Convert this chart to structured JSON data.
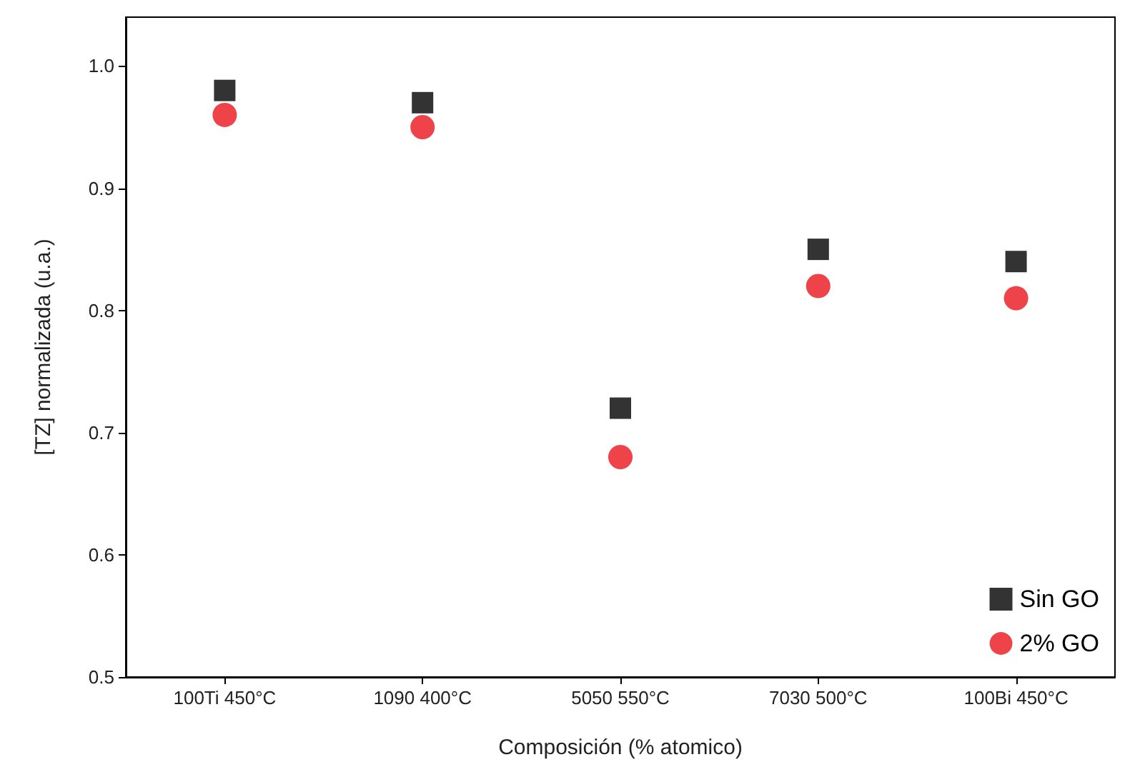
{
  "chart_data": {
    "type": "scatter",
    "xlabel": "Composición (% atomico)",
    "ylabel": "[TZ] normalizada (u.a.)",
    "categories": [
      "100Ti 450°C",
      "1090 400°C",
      "5050 550°C",
      "7030 500°C",
      "100Bi 450°C"
    ],
    "series": [
      {
        "name": "Sin GO",
        "color": "#000000",
        "marker": "square",
        "values": [
          0.98,
          0.97,
          0.72,
          0.85,
          0.84
        ]
      },
      {
        "name": "2% GO",
        "color": "#e8141b",
        "marker": "circle",
        "values": [
          0.96,
          0.95,
          0.68,
          0.82,
          0.81
        ]
      }
    ],
    "ylim": [
      0.5,
      1.04
    ],
    "yticks": [
      0.5,
      0.6,
      0.7,
      0.8,
      0.9,
      {
        "value": 1,
        "label": "1.0"
      }
    ],
    "grid": false,
    "legend": "bottom right"
  }
}
